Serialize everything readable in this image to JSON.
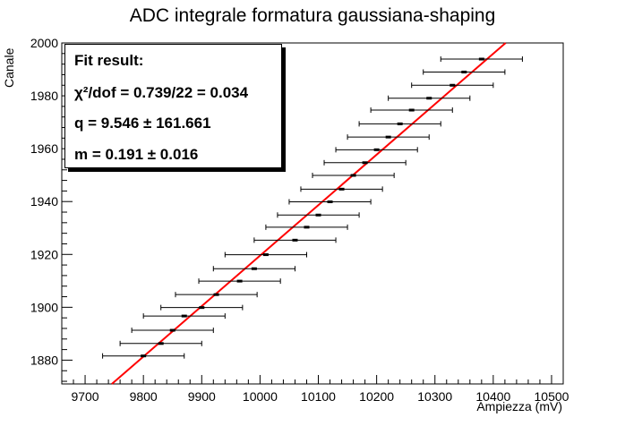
{
  "chart_data": {
    "type": "scatter",
    "title": "ADC integrale formatura gaussiana-shaping",
    "xlabel": "Ampiezza (mV)",
    "ylabel": "Canale",
    "xlim": [
      9660,
      10520
    ],
    "ylim": [
      1871,
      2000
    ],
    "x_ticks": [
      9700,
      9800,
      9900,
      10000,
      10100,
      10200,
      10300,
      10400,
      10500
    ],
    "y_ticks": [
      1880,
      1900,
      1920,
      1940,
      1960,
      1980,
      2000
    ],
    "grid": false,
    "series": [
      {
        "style": "points-with-x-errorbars",
        "color": "#000000",
        "points": [
          {
            "x": 9800,
            "y": 1881.6,
            "xerr": 70
          },
          {
            "x": 9830,
            "y": 1886.3,
            "xerr": 70
          },
          {
            "x": 9850,
            "y": 1891.3,
            "xerr": 70
          },
          {
            "x": 9870,
            "y": 1896.7,
            "xerr": 70
          },
          {
            "x": 9900,
            "y": 1899.9,
            "xerr": 70
          },
          {
            "x": 9925,
            "y": 1904.8,
            "xerr": 70
          },
          {
            "x": 9965,
            "y": 1909.9,
            "xerr": 70
          },
          {
            "x": 9990,
            "y": 1914.6,
            "xerr": 70
          },
          {
            "x": 10010,
            "y": 1919.9,
            "xerr": 70
          },
          {
            "x": 10060,
            "y": 1925.4,
            "xerr": 70
          },
          {
            "x": 10080,
            "y": 1930.3,
            "xerr": 70
          },
          {
            "x": 10100,
            "y": 1934.9,
            "xerr": 70
          },
          {
            "x": 10120,
            "y": 1939.9,
            "xerr": 70
          },
          {
            "x": 10140,
            "y": 1944.7,
            "xerr": 70
          },
          {
            "x": 10160,
            "y": 1949.9,
            "xerr": 70
          },
          {
            "x": 10180,
            "y": 1954.7,
            "xerr": 70
          },
          {
            "x": 10200,
            "y": 1959.6,
            "xerr": 70
          },
          {
            "x": 10220,
            "y": 1964.4,
            "xerr": 70
          },
          {
            "x": 10240,
            "y": 1969.4,
            "xerr": 70
          },
          {
            "x": 10260,
            "y": 1974.6,
            "xerr": 70
          },
          {
            "x": 10290,
            "y": 1979.1,
            "xerr": 70
          },
          {
            "x": 10330,
            "y": 1984.0,
            "xerr": 70
          },
          {
            "x": 10350,
            "y": 1989.0,
            "xerr": 70
          },
          {
            "x": 10380,
            "y": 1993.9,
            "xerr": 70
          }
        ]
      },
      {
        "style": "fit-line",
        "color": "#ff0000",
        "slope": 0.191,
        "intercept": 9.546
      }
    ],
    "fit_box": {
      "heading": "Fit result:",
      "chi_line": "χ²/dof = 0.739/22 = 0.034",
      "q_line": "q = 9.546 ± 161.661",
      "m_line": "m = 0.191 ± 0.016"
    }
  }
}
